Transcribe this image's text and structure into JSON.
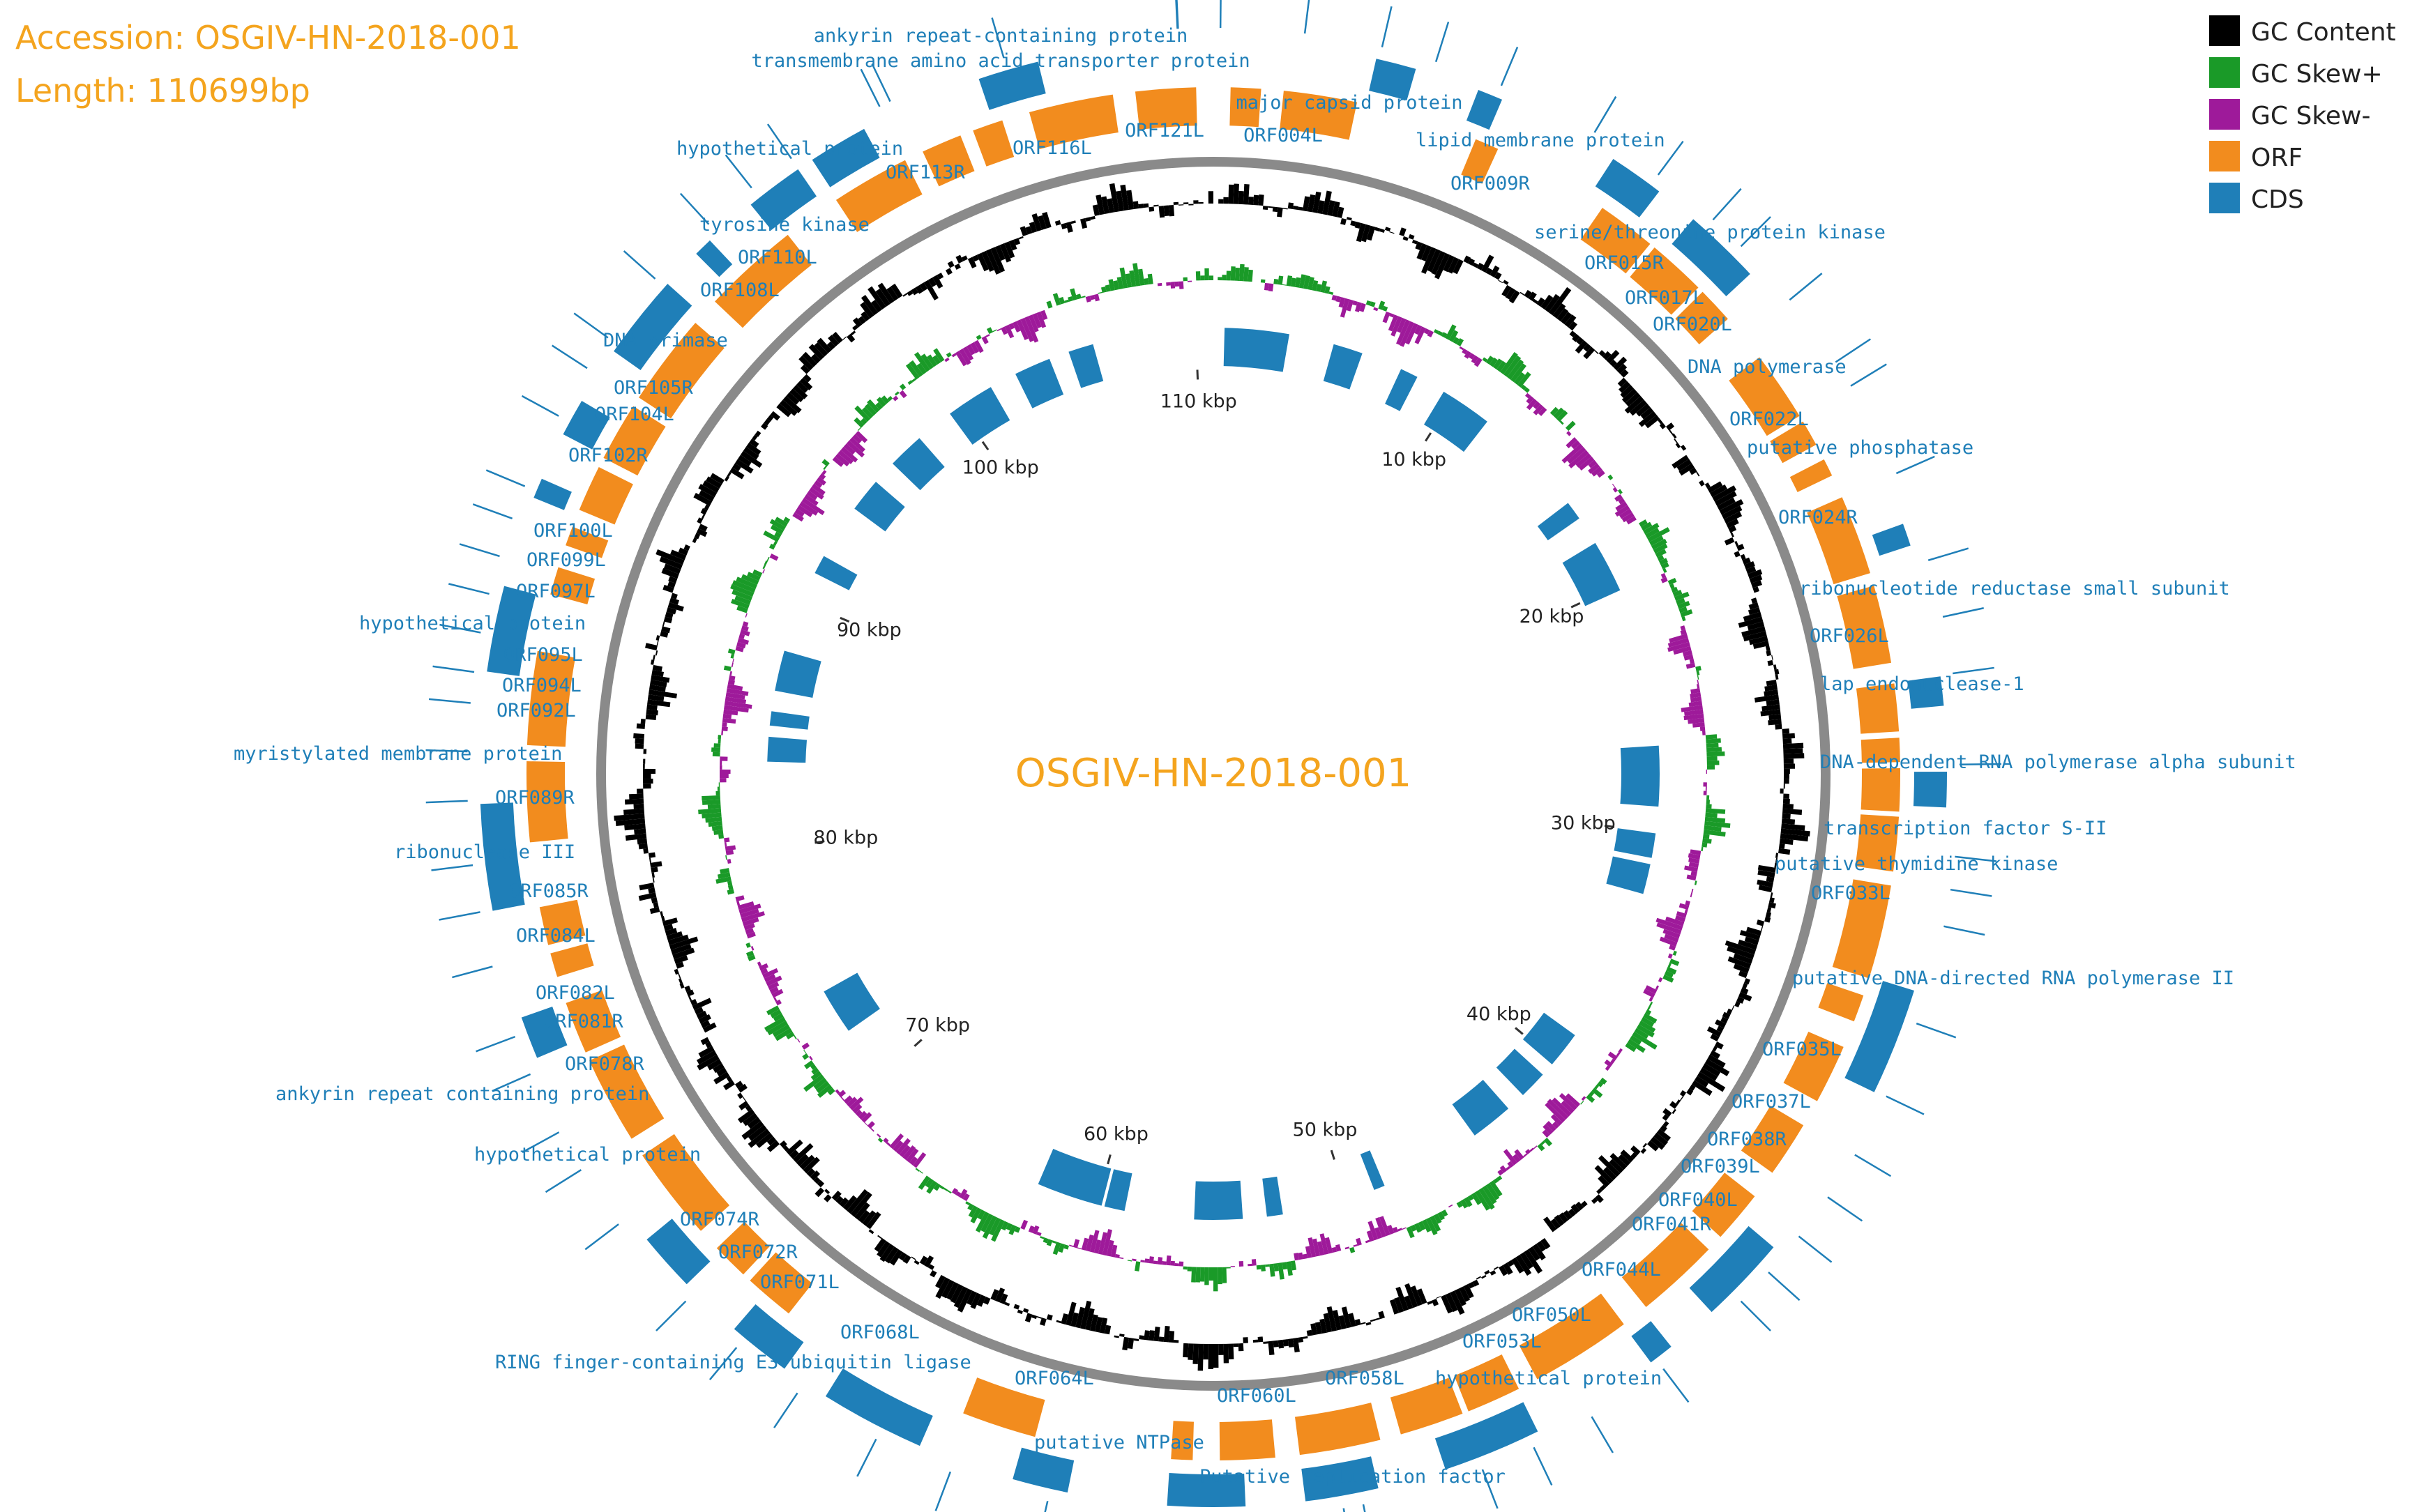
{
  "header": {
    "accession": "Accession: OSGIV-HN-2018-001",
    "length": "Length: 110699bp"
  },
  "center_title": "OSGIV-HN-2018-001",
  "genome_length_bp": 110699,
  "legend": [
    {
      "label": "GC Content",
      "color": "#000000"
    },
    {
      "label": "GC Skew+",
      "color": "#1a9a28"
    },
    {
      "label": "GC Skew-",
      "color": "#9e1a9a"
    },
    {
      "label": "ORF",
      "color": "#f28c1e"
    },
    {
      "label": "CDS",
      "color": "#1f7fb8"
    }
  ],
  "kbp_ticks": [
    {
      "kbp": 10,
      "label": "10 kbp"
    },
    {
      "kbp": 20,
      "label": "20 kbp"
    },
    {
      "kbp": 30,
      "label": "30 kbp"
    },
    {
      "kbp": 40,
      "label": "40 kbp"
    },
    {
      "kbp": 50,
      "label": "50 kbp"
    },
    {
      "kbp": 60,
      "label": "60 kbp"
    },
    {
      "kbp": 70,
      "label": "70 kbp"
    },
    {
      "kbp": 80,
      "label": "80 kbp"
    },
    {
      "kbp": 90,
      "label": "90 kbp"
    },
    {
      "kbp": 100,
      "label": "100 kbp"
    },
    {
      "kbp": 110,
      "label": "110 kbp"
    }
  ],
  "labels": [
    {
      "text": "ankyrin repeat-containing protein"
    },
    {
      "text": "transmembrane amino acid transporter protein"
    },
    {
      "text": "ORF121L"
    },
    {
      "text": "major capsid protein"
    },
    {
      "text": "ORF004L"
    },
    {
      "text": "lipid membrane protein"
    },
    {
      "text": "ORF009R"
    },
    {
      "text": "serine/threonine protein kinase"
    },
    {
      "text": "ORF015R"
    },
    {
      "text": "ORF017L"
    },
    {
      "text": "ORF020L"
    },
    {
      "text": "DNA polymerase"
    },
    {
      "text": "ORF022L"
    },
    {
      "text": "putative phosphatase"
    },
    {
      "text": "ORF024R"
    },
    {
      "text": "ribonucleotide reductase small subunit"
    },
    {
      "text": "ORF026L"
    },
    {
      "text": "lap endonuclease-1"
    },
    {
      "text": "DNA-dependent RNA polymerase alpha subunit"
    },
    {
      "text": "transcription factor S-II"
    },
    {
      "text": "putative thymidine kinase"
    },
    {
      "text": "ORF033L"
    },
    {
      "text": "putative DNA-directed RNA polymerase II"
    },
    {
      "text": "ORF035L"
    },
    {
      "text": "ORF037L"
    },
    {
      "text": "ORF038R"
    },
    {
      "text": "ORF039L"
    },
    {
      "text": "ORF040L"
    },
    {
      "text": "ORF041R"
    },
    {
      "text": "ORF044L"
    },
    {
      "text": "ORF050L"
    },
    {
      "text": "ORF053L"
    },
    {
      "text": "hypothetical protein"
    },
    {
      "text": "ORF058L"
    },
    {
      "text": "Putative replication factor"
    },
    {
      "text": "ORF060L"
    },
    {
      "text": "putative NTPase"
    },
    {
      "text": "ORF064L"
    },
    {
      "text": "RING finger-containing E3 ubiquitin ligase"
    },
    {
      "text": "ORF068L"
    },
    {
      "text": "ORF071L"
    },
    {
      "text": "ORF072R"
    },
    {
      "text": "ORF074R"
    },
    {
      "text": "hypothetical protein"
    },
    {
      "text": "ankyrin repeat containing protein"
    },
    {
      "text": "ORF078R"
    },
    {
      "text": "ORF081R"
    },
    {
      "text": "ORF082L"
    },
    {
      "text": "ORF084L"
    },
    {
      "text": "ORF085R"
    },
    {
      "text": "ribonuclease III"
    },
    {
      "text": "ORF089R"
    },
    {
      "text": "myristylated membrane protein"
    },
    {
      "text": "ORF092L"
    },
    {
      "text": "ORF094L"
    },
    {
      "text": "ORF095L"
    },
    {
      "text": "hypothetical protein"
    },
    {
      "text": "ORF097L"
    },
    {
      "text": "ORF099L"
    },
    {
      "text": "ORF100L"
    },
    {
      "text": "ORF102R"
    },
    {
      "text": "ORF104L"
    },
    {
      "text": "ORF105R"
    },
    {
      "text": "DNA primase"
    },
    {
      "text": "ORF108L"
    },
    {
      "text": "ORF110L"
    },
    {
      "text": "tyrosine kinase"
    },
    {
      "text": "ORF113R"
    },
    {
      "text": "hypothetical protein"
    },
    {
      "text": "ORF116L"
    }
  ]
}
